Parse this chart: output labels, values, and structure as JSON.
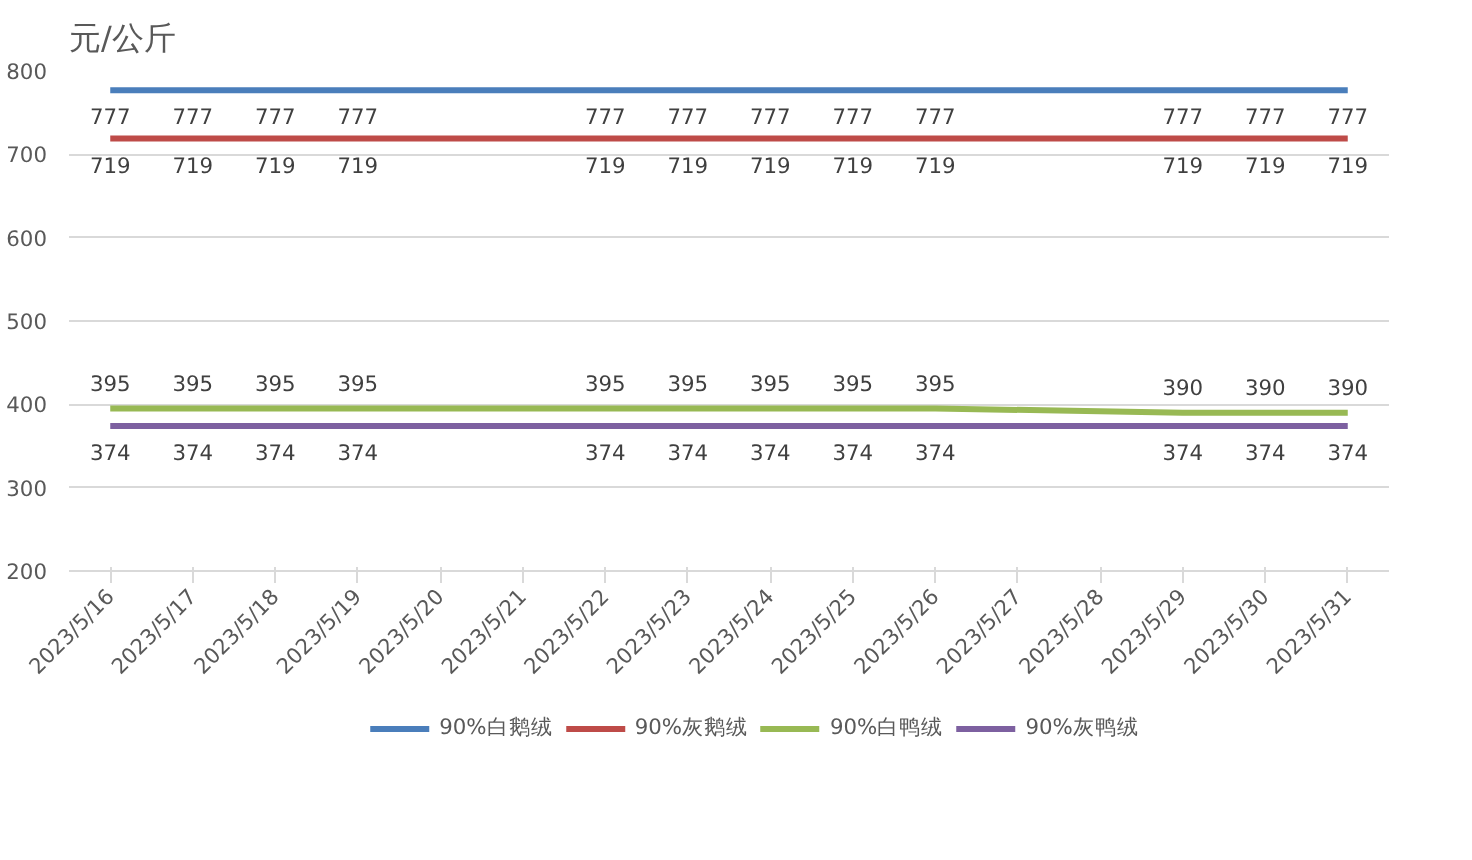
{
  "chart_data": {
    "type": "line",
    "ylabel": "元/公斤",
    "x": [
      "2023-05-16",
      "2023-05-17",
      "2023-05-18",
      "2023-05-19",
      "2023-05-22",
      "2023-05-23",
      "2023-05-24",
      "2023-05-25",
      "2023-05-26",
      "2023-05-29",
      "2023-05-30",
      "2023-05-31"
    ],
    "series": [
      {
        "name": "90%白鹅绒",
        "color": "#4a7ebb",
        "values": [
          777,
          777,
          777,
          777,
          777,
          777,
          777,
          777,
          777,
          777,
          777,
          777
        ]
      },
      {
        "name": "90%灰鹅绒",
        "color": "#be4b48",
        "values": [
          719,
          719,
          719,
          719,
          719,
          719,
          719,
          719,
          719,
          719,
          719,
          719
        ]
      },
      {
        "name": "90%白鸭绒",
        "color": "#98b954",
        "values": [
          395,
          395,
          395,
          395,
          395,
          395,
          395,
          395,
          395,
          390,
          390,
          390
        ]
      },
      {
        "name": "90%灰鸭绒",
        "color": "#7d60a0",
        "values": [
          374,
          374,
          374,
          374,
          374,
          374,
          374,
          374,
          374,
          374,
          374,
          374
        ]
      }
    ],
    "xlim": [
      "2023-05-15T12:00",
      "2023-05-31T12:00"
    ],
    "xticks": [
      {
        "value": "2023-05-16",
        "label": "2023/5/16"
      },
      {
        "value": "2023-05-17",
        "label": "2023/5/17"
      },
      {
        "value": "2023-05-18",
        "label": "2023/5/18"
      },
      {
        "value": "2023-05-19",
        "label": "2023/5/19"
      },
      {
        "value": "2023-05-20",
        "label": "2023/5/20"
      },
      {
        "value": "2023-05-21",
        "label": "2023/5/21"
      },
      {
        "value": "2023-05-22",
        "label": "2023/5/22"
      },
      {
        "value": "2023-05-23",
        "label": "2023/5/23"
      },
      {
        "value": "2023-05-24",
        "label": "2023/5/24"
      },
      {
        "value": "2023-05-25",
        "label": "2023/5/25"
      },
      {
        "value": "2023-05-26",
        "label": "2023/5/26"
      },
      {
        "value": "2023-05-27",
        "label": "2023/5/27"
      },
      {
        "value": "2023-05-28",
        "label": "2023/5/28"
      },
      {
        "value": "2023-05-29",
        "label": "2023/5/29"
      },
      {
        "value": "2023-05-30",
        "label": "2023/5/30"
      },
      {
        "value": "2023-05-31",
        "label": "2023/5/31"
      }
    ],
    "ylim": [
      200,
      800
    ],
    "yticks": [
      200,
      300,
      400,
      500,
      600,
      700,
      800
    ],
    "grid": "y",
    "legend": "bottom",
    "data_labels": true,
    "marker": "none",
    "line_style": "solid"
  }
}
